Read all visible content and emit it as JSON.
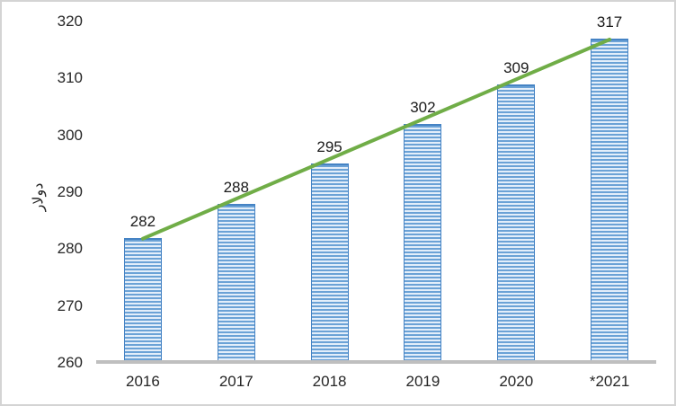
{
  "chart_data": {
    "type": "bar",
    "title": "",
    "categories": [
      "2016",
      "2017",
      "2018",
      "2019",
      "2020",
      "*2021"
    ],
    "values": [
      282,
      288,
      295,
      302,
      309,
      317
    ],
    "bar_value_labels": [
      "282",
      "288",
      "295",
      "302",
      "309",
      "317"
    ],
    "xlabel": "",
    "ylabel": "دولار",
    "ylim": [
      260,
      320
    ],
    "yticks": [
      260,
      270,
      280,
      290,
      300,
      310,
      320
    ],
    "grid": false,
    "legend": "none",
    "trendline": {
      "type": "linear",
      "start_value": 282,
      "end_value": 317
    },
    "colors": {
      "bar_fill_stripe": "#6BA2D6",
      "bar_fill_light": "#E3EEFA",
      "bar_border": "#4583C4",
      "trendline": "#70AD47",
      "axis_line": "#BFBFBF",
      "text": "#262626",
      "frame_border": "#D4D4D4",
      "background": "#FFFFFF"
    }
  }
}
